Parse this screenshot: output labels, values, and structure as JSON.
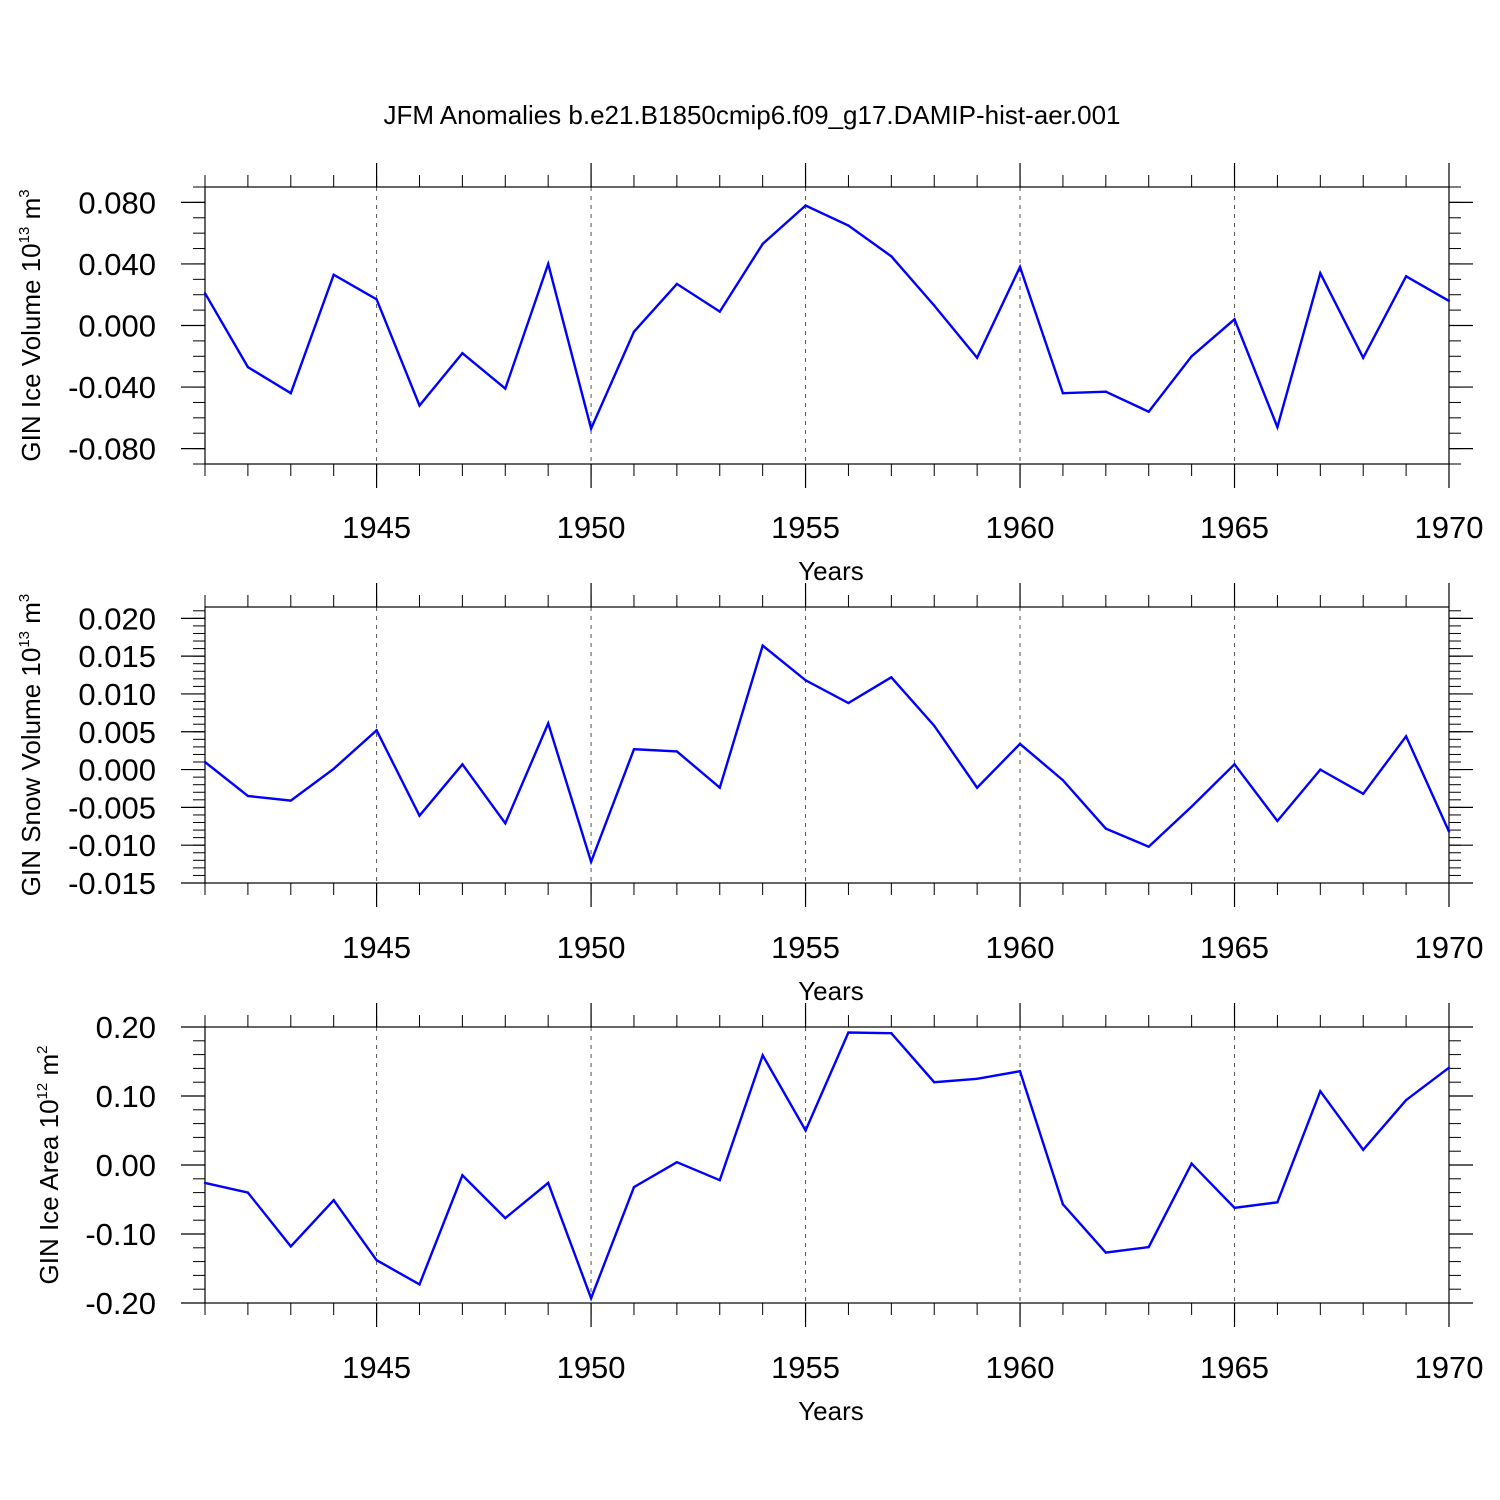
{
  "title": "JFM Anomalies b.e21.B1850cmip6.f09_g17.DAMIP-hist-aer.001",
  "colors": {
    "line": "#0000ff",
    "axis": "#000000",
    "grid": "#555555"
  },
  "chart_data": [
    {
      "type": "line",
      "ylabel_text": "GIN Ice Volume 10",
      "ylabel_exp": "13",
      "ylabel_unit": " m",
      "ylabel_unit_exp": "3",
      "xlabel": "Years",
      "xlim": [
        1941,
        1970
      ],
      "ylim": [
        -0.09,
        0.09
      ],
      "yticks": [
        -0.08,
        -0.04,
        0.0,
        0.04,
        0.08
      ],
      "ytick_labels": [
        "-0.080",
        "-0.040",
        "0.000",
        "0.040",
        "0.080"
      ],
      "yminor_step": 0.01,
      "xticks": [
        1945,
        1950,
        1955,
        1960,
        1965,
        1970
      ],
      "xtick_labels": [
        "1945",
        "1950",
        "1955",
        "1960",
        "1965",
        "1970"
      ],
      "x": [
        1941,
        1942,
        1943,
        1944,
        1945,
        1946,
        1947,
        1948,
        1949,
        1950,
        1951,
        1952,
        1953,
        1954,
        1955,
        1956,
        1957,
        1958,
        1959,
        1960,
        1961,
        1962,
        1963,
        1964,
        1965,
        1966,
        1967,
        1968,
        1969,
        1970
      ],
      "values": [
        0.021,
        -0.027,
        -0.044,
        0.033,
        0.017,
        -0.052,
        -0.018,
        -0.041,
        0.04,
        -0.067,
        -0.004,
        0.027,
        0.009,
        0.053,
        0.078,
        0.065,
        0.045,
        0.013,
        -0.021,
        0.038,
        -0.044,
        -0.043,
        -0.056,
        -0.02,
        0.004,
        -0.066,
        0.034,
        -0.021,
        0.032,
        0.016
      ]
    },
    {
      "type": "line",
      "ylabel_text": "GIN Snow Volume 10",
      "ylabel_exp": "13",
      "ylabel_unit": " m",
      "ylabel_unit_exp": "3",
      "xlabel": "Years",
      "xlim": [
        1941,
        1970
      ],
      "ylim": [
        -0.015,
        0.0215
      ],
      "yticks": [
        -0.015,
        -0.01,
        -0.005,
        0.0,
        0.005,
        0.01,
        0.015,
        0.02
      ],
      "ytick_labels": [
        "-0.015",
        "-0.010",
        "-0.005",
        "0.000",
        "0.005",
        "0.010",
        "0.015",
        "0.020"
      ],
      "yminor_step": 0.001,
      "xticks": [
        1945,
        1950,
        1955,
        1960,
        1965,
        1970
      ],
      "xtick_labels": [
        "1945",
        "1950",
        "1955",
        "1960",
        "1965",
        "1970"
      ],
      "x": [
        1941,
        1942,
        1943,
        1944,
        1945,
        1946,
        1947,
        1948,
        1949,
        1950,
        1951,
        1952,
        1953,
        1954,
        1955,
        1956,
        1957,
        1958,
        1959,
        1960,
        1961,
        1962,
        1963,
        1964,
        1965,
        1966,
        1967,
        1968,
        1969,
        1970
      ],
      "values": [
        0.001,
        -0.0035,
        -0.0041,
        0.0001,
        0.0052,
        -0.0061,
        0.0007,
        -0.0071,
        0.0061,
        -0.0122,
        0.0027,
        0.0024,
        -0.0024,
        0.0164,
        0.0118,
        0.0088,
        0.0122,
        0.0058,
        -0.0024,
        0.0034,
        -0.0014,
        -0.0078,
        -0.0102,
        -0.0049,
        0.0007,
        -0.0068,
        0.0,
        -0.0032,
        0.0044,
        -0.0082
      ]
    },
    {
      "type": "line",
      "ylabel_text": "GIN Ice Area 10",
      "ylabel_exp": "12",
      "ylabel_unit": " m",
      "ylabel_unit_exp": "2",
      "xlabel": "Years",
      "xlim": [
        1941,
        1970
      ],
      "ylim": [
        -0.2,
        0.2
      ],
      "yticks": [
        -0.2,
        -0.1,
        0.0,
        0.1,
        0.2
      ],
      "ytick_labels": [
        "-0.20",
        "-0.10",
        "0.00",
        "0.10",
        "0.20"
      ],
      "yminor_step": 0.02,
      "xticks": [
        1945,
        1950,
        1955,
        1960,
        1965,
        1970
      ],
      "xtick_labels": [
        "1945",
        "1950",
        "1955",
        "1960",
        "1965",
        "1970"
      ],
      "x": [
        1941,
        1942,
        1943,
        1944,
        1945,
        1946,
        1947,
        1948,
        1949,
        1950,
        1951,
        1952,
        1953,
        1954,
        1955,
        1956,
        1957,
        1958,
        1959,
        1960,
        1961,
        1962,
        1963,
        1964,
        1965,
        1966,
        1967,
        1968,
        1969,
        1970
      ],
      "values": [
        -0.026,
        -0.04,
        -0.118,
        -0.051,
        -0.138,
        -0.173,
        -0.015,
        -0.077,
        -0.026,
        -0.193,
        -0.032,
        0.004,
        -0.022,
        0.159,
        0.05,
        0.192,
        0.191,
        0.12,
        0.125,
        0.136,
        -0.057,
        -0.127,
        -0.119,
        0.002,
        -0.062,
        -0.054,
        0.107,
        0.022,
        0.094,
        0.141
      ]
    }
  ]
}
